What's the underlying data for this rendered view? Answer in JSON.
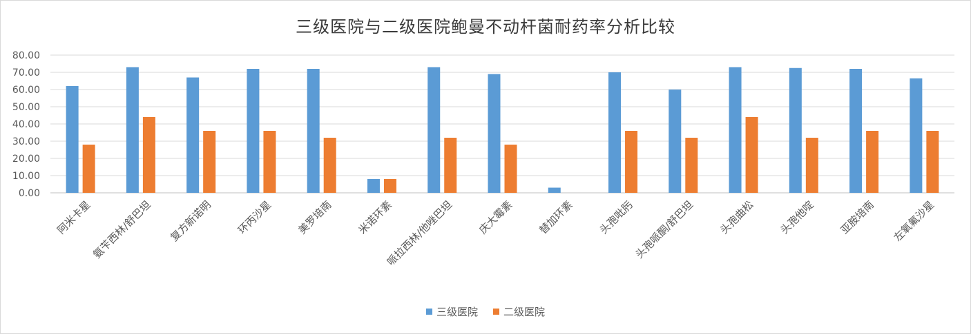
{
  "chart_data": {
    "type": "bar",
    "title": "三级医院与二级医院鲍曼不动杆菌耐药率分析比较",
    "xlabel": "",
    "ylabel": "",
    "ylim": [
      0,
      80
    ],
    "yticks": [
      "0.00",
      "10.00",
      "20.00",
      "30.00",
      "40.00",
      "50.00",
      "60.00",
      "70.00",
      "80.00"
    ],
    "grid": true,
    "legend_position": "bottom",
    "categories": [
      "阿米卡星",
      "氨苄西林/舒巴坦",
      "复方新诺明",
      "环丙沙星",
      "美罗培南",
      "米诺环素",
      "哌拉西林/他唑巴坦",
      "庆大霉素",
      "替加环素",
      "头孢吡肟",
      "头孢哌酮/舒巴坦",
      "头孢曲松",
      "头孢他啶",
      "亚胺培南",
      "左氧氟沙星"
    ],
    "series": [
      {
        "name": "三级医院",
        "color": "#5b9bd5",
        "values": [
          62,
          73,
          67,
          72,
          72,
          8,
          73,
          69,
          3,
          70,
          60,
          73,
          72.5,
          72,
          66.5
        ]
      },
      {
        "name": "二级医院",
        "color": "#ed7d31",
        "values": [
          28,
          44,
          36,
          36,
          32,
          8,
          32,
          28,
          0,
          36,
          32,
          44,
          32,
          36,
          36
        ]
      }
    ]
  }
}
